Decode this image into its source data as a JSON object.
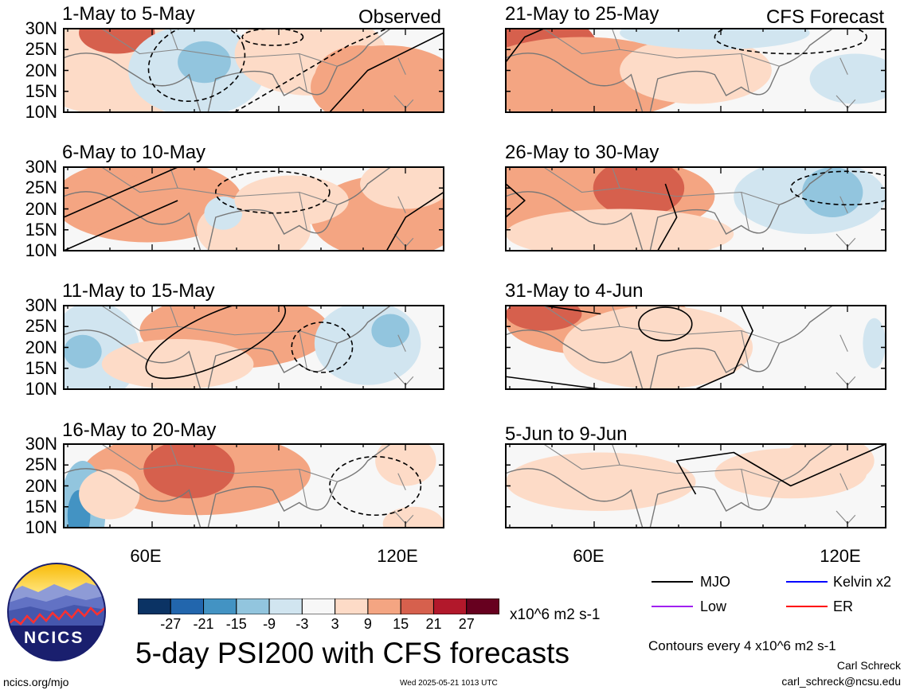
{
  "panels": [
    {
      "title": "1-May to 5-May",
      "tag": "Observed"
    },
    {
      "title": "6-May to 10-May",
      "tag": ""
    },
    {
      "title": "11-May to 15-May",
      "tag": ""
    },
    {
      "title": "16-May to 20-May",
      "tag": ""
    },
    {
      "title": "21-May to 25-May",
      "tag": "CFS Forecast"
    },
    {
      "title": "26-May to 30-May",
      "tag": ""
    },
    {
      "title": "31-May to 4-Jun",
      "tag": ""
    },
    {
      "title": "5-Jun to 9-Jun",
      "tag": ""
    }
  ],
  "lat_ticks": [
    "30N",
    "25N",
    "20N",
    "15N",
    "10N"
  ],
  "lon_ticks": [
    "60E",
    "120E"
  ],
  "colorbar": {
    "labels": [
      "-27",
      "-21",
      "-15",
      "-9",
      "-3",
      "3",
      "9",
      "15",
      "21",
      "27"
    ],
    "colors": [
      "#0b3364",
      "#2266ad",
      "#4393c3",
      "#92c5de",
      "#d1e5f0",
      "#f7f7f7",
      "#fddbc7",
      "#f4a582",
      "#d6604d",
      "#b2182b",
      "#67001f"
    ],
    "units": "x10^6 m2 s-1"
  },
  "title": "5-day PSI200 with CFS forecasts",
  "legend": [
    {
      "label": "MJO",
      "color": "#000000"
    },
    {
      "label": "Kelvin x2",
      "color": "#0000ff"
    },
    {
      "label": "Low",
      "color": "#a020f0"
    },
    {
      "label": "ER",
      "color": "#ff0000"
    }
  ],
  "contour_note": "Contours every 4 x10^6 m2 s-1",
  "author": "Carl Schreck",
  "email": "carl_schreck@ncsu.edu",
  "site": "ncics.org/mjo",
  "timestamp": "Wed 2025-05-21 1013 UTC",
  "logo_text": "NCICS"
}
